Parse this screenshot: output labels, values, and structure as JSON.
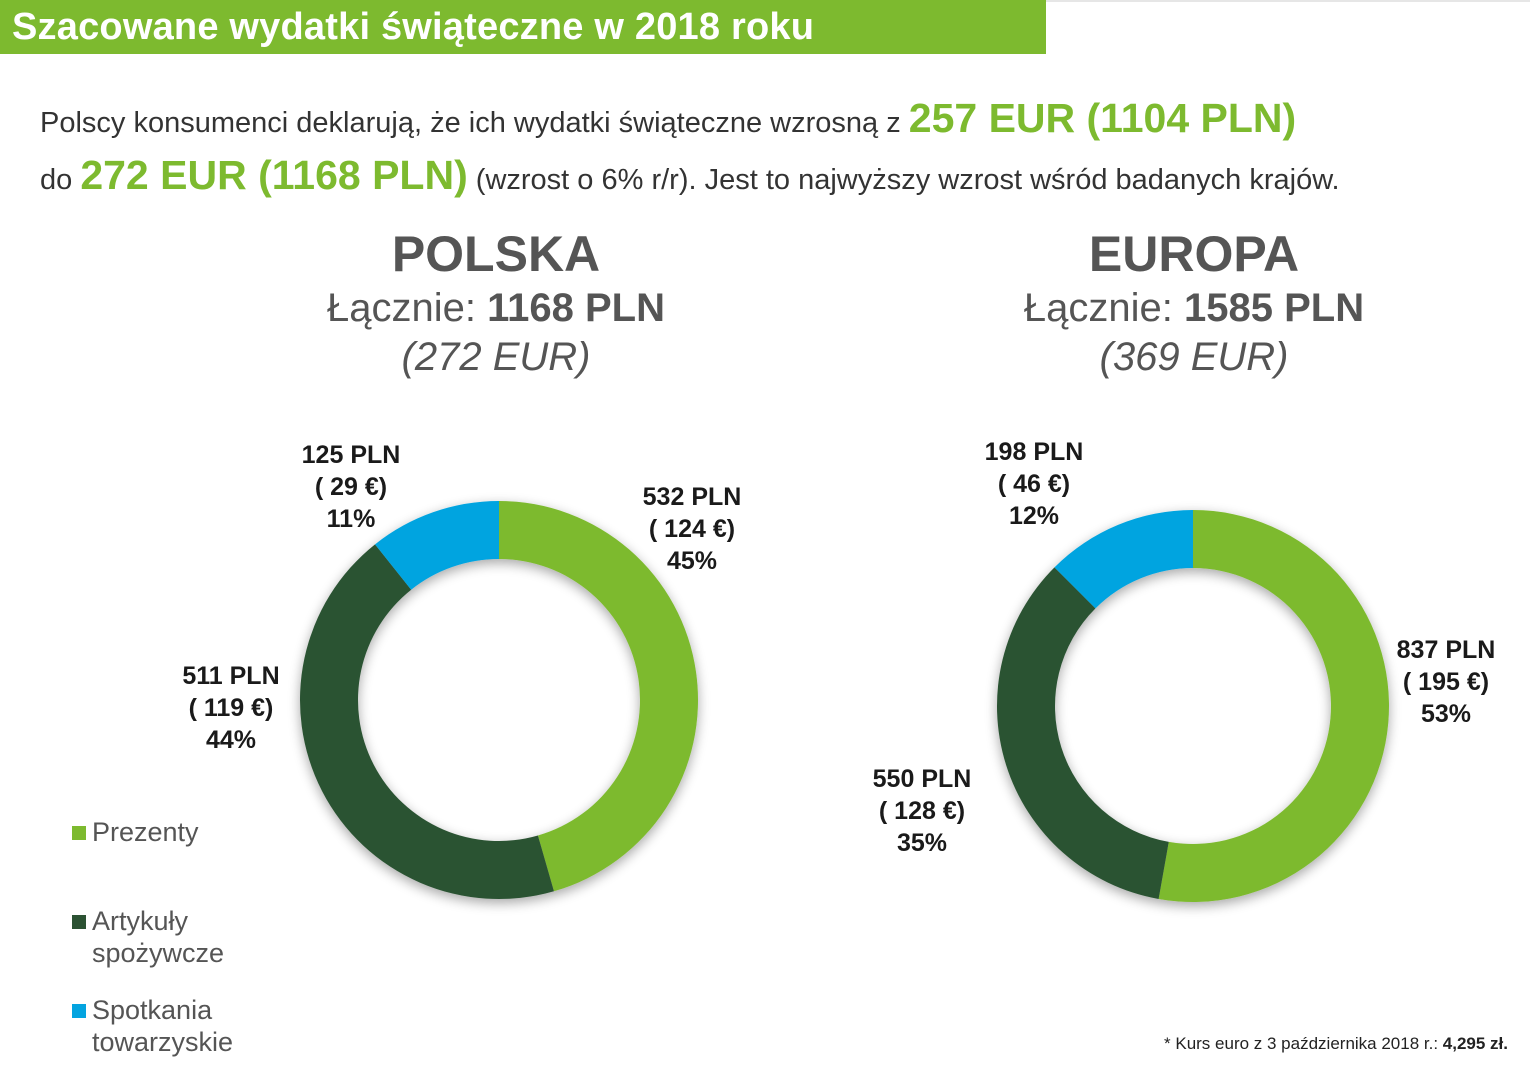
{
  "header": {
    "title": "Szacowane wydatki świąteczne w 2018 roku"
  },
  "intro": {
    "line1_text": "Polscy konsumenci deklarują, że ich wydatki świąteczne wzrosną z ",
    "line1_highlight": "257 EUR (1104 PLN)",
    "line2_prefix": "do ",
    "line2_highlight": "272 EUR (1168 PLN)",
    "line2_text": " (wzrost o 6% r/r). Jest to najwyższy wzrost wśród badanych krajów."
  },
  "panels": [
    {
      "country": "POLSKA",
      "total_label": "Łącznie: ",
      "total_value": "1168 PLN",
      "total_eur": "(272 EUR)"
    },
    {
      "country": "EUROPA",
      "total_label": "Łącznie: ",
      "total_value": "1585 PLN",
      "total_eur": "(369 EUR)"
    }
  ],
  "legend": [
    {
      "label": "Prezenty",
      "color": "#7dba2f"
    },
    {
      "label": "Artykuły spożywcze",
      "color": "#2c5233"
    },
    {
      "label": "Spotkania towarzyskie",
      "color": "#04a4e0"
    }
  ],
  "footnote": {
    "text": "* Kurs euro z 3 października 2018 r.: ",
    "value": "4,295 zł."
  },
  "chart_data": [
    {
      "type": "pie",
      "title": "POLSKA",
      "categories": [
        "Prezenty",
        "Artykuły spożywcze",
        "Spotkania towarzyskie"
      ],
      "values": [
        532,
        511,
        125
      ],
      "eur_values": [
        124,
        119,
        29
      ],
      "percents": [
        45,
        44,
        11
      ],
      "labels": [
        [
          "532 PLN",
          "( 124 €)",
          "45%"
        ],
        [
          "511 PLN",
          "( 119 €)",
          "44%"
        ],
        [
          "125 PLN",
          "( 29 €)",
          "11%"
        ]
      ],
      "colors": [
        "#7dba2f",
        "#2c5233",
        "#04a4e0"
      ]
    },
    {
      "type": "pie",
      "title": "EUROPA",
      "categories": [
        "Prezenty",
        "Artykuły spożywcze",
        "Spotkania towarzyskie"
      ],
      "values": [
        837,
        550,
        198
      ],
      "eur_values": [
        195,
        128,
        46
      ],
      "percents": [
        53,
        35,
        12
      ],
      "labels": [
        [
          "837 PLN",
          "( 195 €)",
          "53%"
        ],
        [
          "550 PLN",
          "( 128 €)",
          "35%"
        ],
        [
          "198 PLN",
          "( 46 €)",
          "12%"
        ]
      ],
      "colors": [
        "#7dba2f",
        "#2c5233",
        "#04a4e0"
      ]
    }
  ]
}
